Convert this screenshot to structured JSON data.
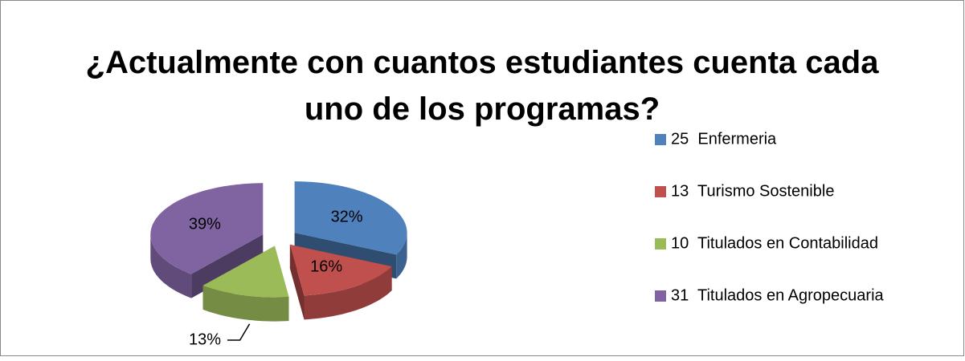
{
  "chart_data": {
    "type": "pie3d",
    "title": "¿Actualmente con cuantos estudiantes cuenta cada uno de los programas?",
    "categories": [
      "25  Enfermeria",
      "13  Turismo Sostenible",
      "10  Titulados en Contabilidad",
      "31  Titulados en Agropecuaria"
    ],
    "values": [
      32,
      16,
      13,
      39
    ],
    "value_labels": [
      "32%",
      "16%",
      "13%",
      "39%"
    ],
    "colors": [
      "#4f81bd",
      "#c0504d",
      "#9bbb59",
      "#8064a2"
    ],
    "legend": "right"
  }
}
